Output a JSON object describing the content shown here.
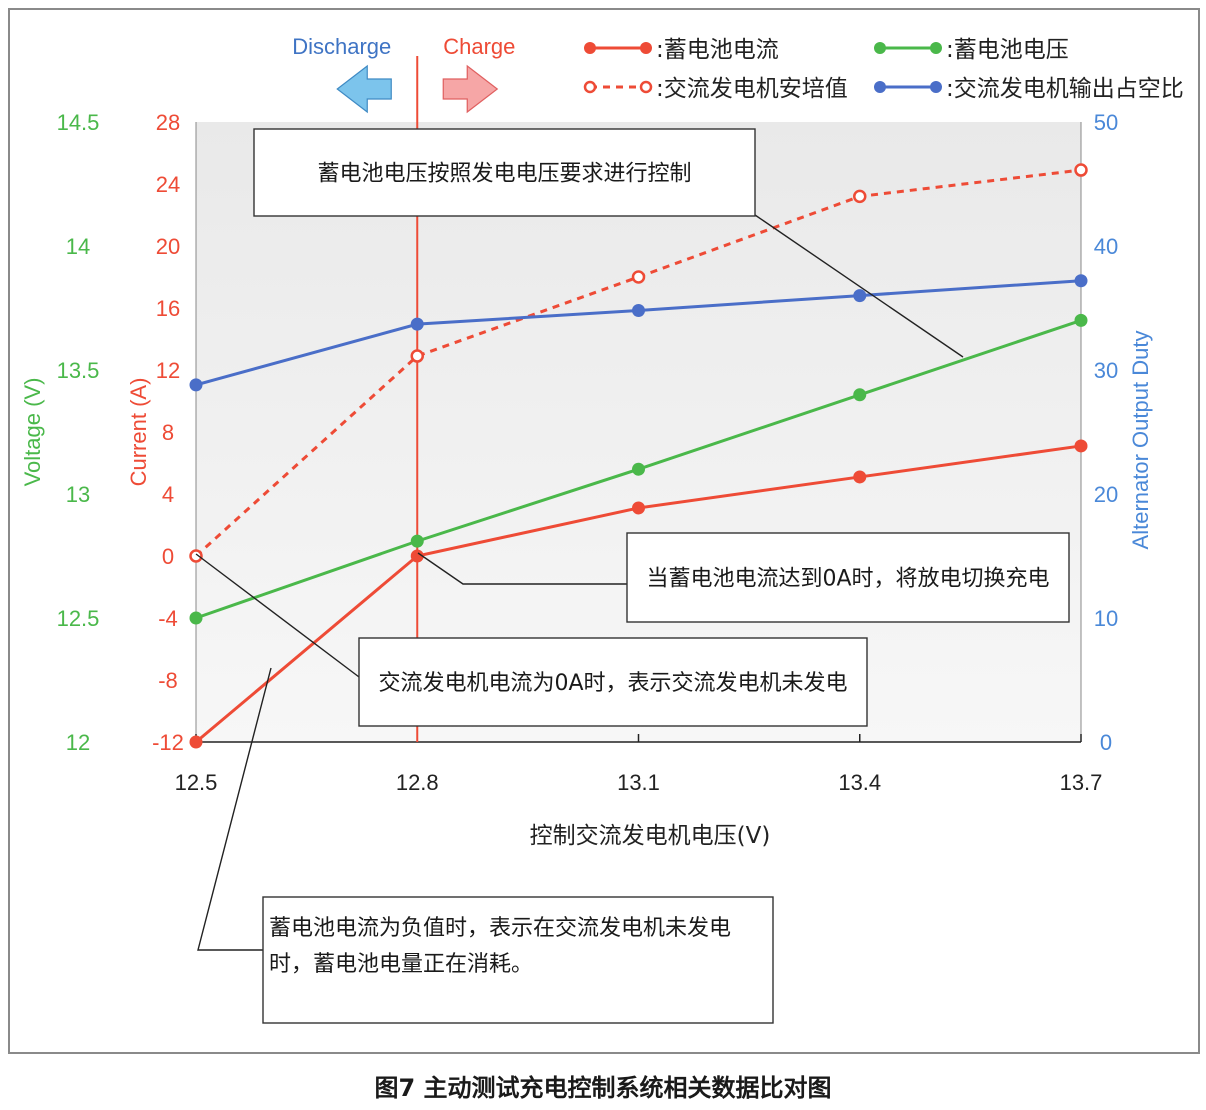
{
  "chart_data": {
    "type": "line",
    "title": "",
    "xlabel": "控制交流发电机电压(V)",
    "x": [
      12.5,
      12.8,
      13.1,
      13.4,
      13.7
    ],
    "x_tick_labels": [
      "12.5",
      "12.8",
      "13.1",
      "13.4",
      "13.7"
    ],
    "axes": {
      "current": {
        "label": "Current (A)",
        "range": [
          -12,
          28
        ],
        "ticks": [
          "-12",
          "-8",
          "-4",
          "0",
          "4",
          "8",
          "12",
          "16",
          "20",
          "24",
          "28"
        ],
        "color": "#ee4b36"
      },
      "voltage": {
        "label": "Voltage (V)",
        "range": [
          12,
          14.5
        ],
        "ticks": [
          "12",
          "12.5",
          "13",
          "13.5",
          "14",
          "14.5"
        ],
        "color": "#4ab84a"
      },
      "duty": {
        "label": "Alternator Output Duty",
        "range": [
          0,
          50
        ],
        "ticks": [
          "0",
          "10",
          "20",
          "30",
          "40",
          "50"
        ],
        "color": "#4a88d8"
      }
    },
    "series": [
      {
        "name": "蓄电池电流",
        "axis": "current",
        "style": "solid",
        "color": "#ee4b36",
        "values": [
          -12,
          0,
          3.1,
          5.1,
          7.1
        ]
      },
      {
        "name": "蓄电池电压",
        "axis": "voltage",
        "style": "solid",
        "color": "#4ab84a",
        "values": [
          12.5,
          12.81,
          13.1,
          13.4,
          13.7
        ]
      },
      {
        "name": "交流发电机安培值",
        "axis": "current",
        "style": "dashed",
        "color": "#ee4b36",
        "values": [
          0,
          12.9,
          18.0,
          23.2,
          24.9
        ]
      },
      {
        "name": "交流发电机输出占空比",
        "axis": "duty",
        "style": "solid",
        "color": "#4a6ec8",
        "values": [
          28.8,
          33.7,
          34.8,
          36.0,
          37.2
        ]
      }
    ],
    "divider": {
      "x": 12.8,
      "left_label": "Discharge",
      "right_label": "Charge"
    },
    "annotations": [
      "蓄电池电压按照发电电压要求进行控制",
      "当蓄电池电流达到0A时，将放电切换充电",
      "交流发电机电流为0A时，表示交流发电机未发电",
      "蓄电池电流为负值时，表示在交流发电机未发电时，蓄电池电量正在消耗。"
    ],
    "grid": false,
    "legend_position": "top-right"
  },
  "caption": "图7 主动测试充电控制系统相关数据比对图"
}
